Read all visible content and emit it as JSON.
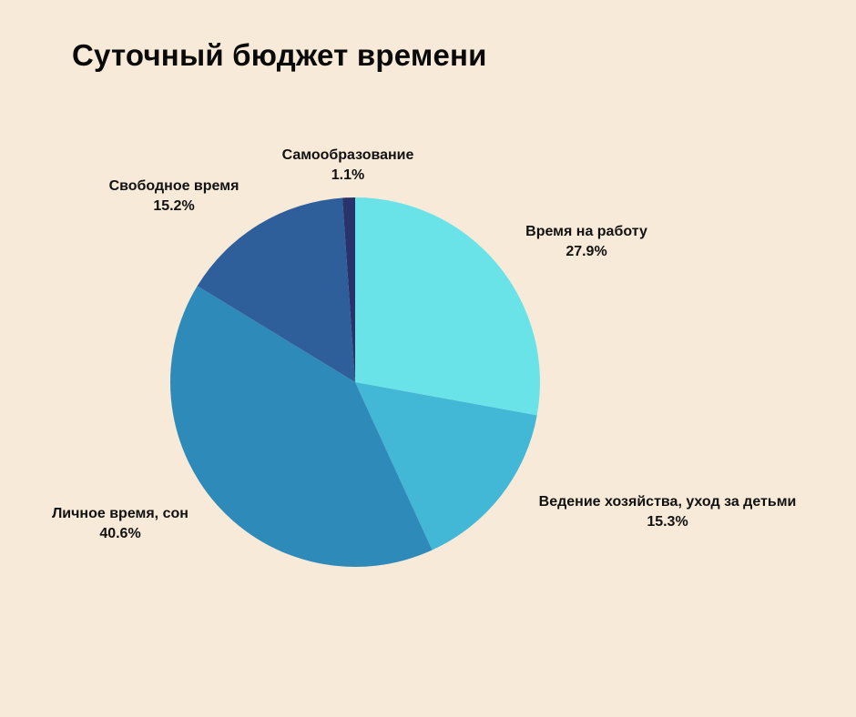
{
  "chart_data": {
    "type": "pie",
    "title": "Суточный бюджет времени",
    "slices": [
      {
        "label": "Время на работу",
        "value": 27.9,
        "display": "27.9%",
        "color": "#6ae3e8"
      },
      {
        "label": "Ведение хозяйства, уход за детьми",
        "value": 15.3,
        "display": "15.3%",
        "color": "#42b7d6"
      },
      {
        "label": "Личное время, сон",
        "value": 40.6,
        "display": "40.6%",
        "color": "#2e8bb9"
      },
      {
        "label": "Свободное время",
        "value": 15.2,
        "display": "15.2%",
        "color": "#2f5f9a"
      },
      {
        "label": "Самообразование",
        "value": 1.1,
        "display": "1.1%",
        "color": "#27336a"
      }
    ],
    "start": "top",
    "direction": "clockwise",
    "legend": "none",
    "background": "#f8ead8"
  }
}
